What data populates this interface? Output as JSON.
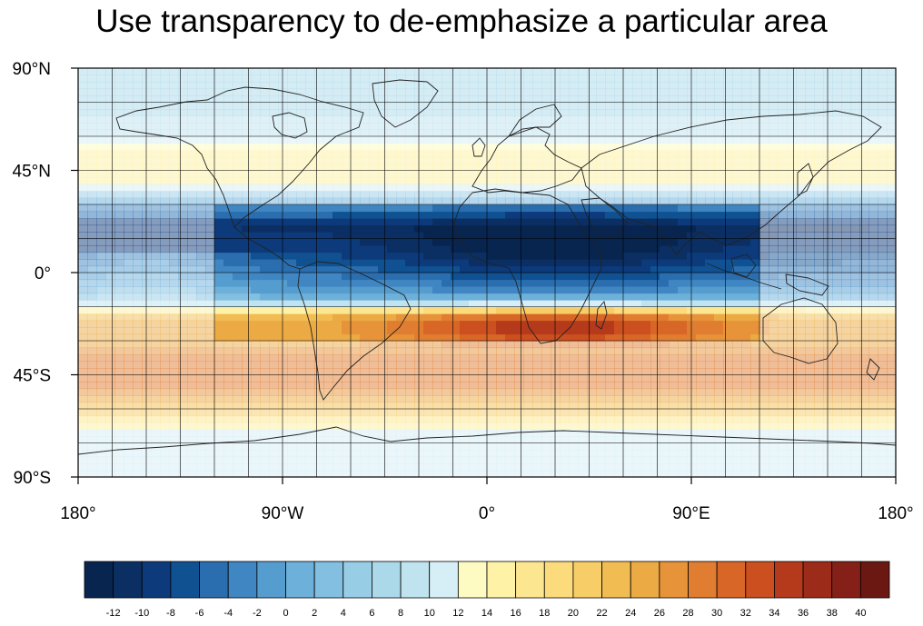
{
  "title": "Use transparency to de-emphasize a particular area",
  "map": {
    "projection": "cylindrical-equidistant",
    "lon_range": [
      -180,
      180
    ],
    "lat_range": [
      -90,
      90
    ],
    "grid_spacing_deg": 15,
    "full_opacity_box": {
      "lon": [
        -120,
        118
      ],
      "lat": [
        -30,
        30
      ]
    },
    "outside_box_opacity": 0.5,
    "y_tick_labels": [
      "90°N",
      "45°N",
      "0°",
      "45°S",
      "90°S"
    ],
    "x_tick_labels": [
      "180°",
      "90°W",
      "0°",
      "90°E",
      "180°"
    ]
  },
  "chart_data": {
    "type": "heatmap",
    "title": "Use transparency to de-emphasize a particular area",
    "xlabel": "",
    "ylabel": "",
    "xlim": [
      -180,
      180
    ],
    "ylim": [
      -90,
      90
    ],
    "field_profile_by_latitude": {
      "lat": [
        -90,
        -80,
        -70,
        -60,
        -50,
        -40,
        -30,
        -20,
        -10,
        0,
        10,
        20,
        30,
        40,
        50,
        60,
        70,
        80,
        90
      ],
      "value": [
        10,
        11,
        12,
        22,
        28,
        30,
        24,
        24,
        0,
        -4,
        -8,
        -10,
        -2,
        14,
        16,
        10,
        8,
        6,
        6
      ]
    },
    "colorbar": {
      "levels": [
        "-12",
        "-10",
        "-8",
        "-6",
        "-4",
        "-2",
        "0",
        "2",
        "4",
        "6",
        "8",
        "10",
        "12",
        "14",
        "16",
        "18",
        "20",
        "22",
        "24",
        "26",
        "28",
        "30",
        "32",
        "34",
        "36",
        "38",
        "40"
      ],
      "colors": [
        "#08254f",
        "#0b2f63",
        "#0d3a7a",
        "#105192",
        "#2a6eaf",
        "#3f86c2",
        "#559dcf",
        "#6db0d9",
        "#82bfe0",
        "#98cde6",
        "#acd9ea",
        "#bfe3ef",
        "#d6eef6",
        "#fdfbc1",
        "#fdf2a6",
        "#fde690",
        "#fcdb7c",
        "#f7cd68",
        "#f1bd53",
        "#ebaa44",
        "#e6933a",
        "#e07d31",
        "#d86627",
        "#cc4f1f",
        "#b43a1b",
        "#9d2b1a",
        "#852018",
        "#6b1812"
      ]
    }
  }
}
